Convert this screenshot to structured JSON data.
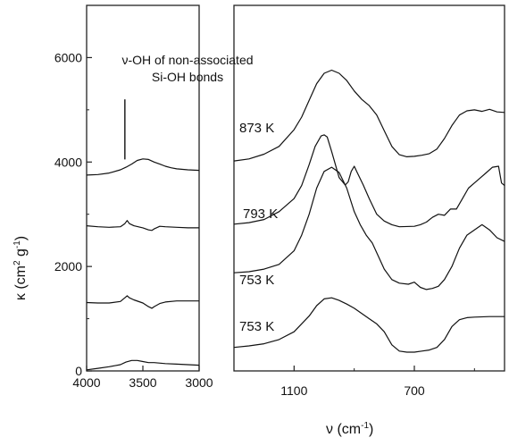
{
  "chart_data": [
    {
      "panel": "left",
      "type": "line",
      "xlim": [
        4000,
        3000
      ],
      "ylim": [
        0,
        7000
      ],
      "xticks": [
        "4000",
        "3500",
        "3000"
      ],
      "yticks": [
        "0",
        "2000",
        "4000",
        "6000"
      ],
      "ylabel": "κ (cm² g⁻¹)",
      "annotation": {
        "line1": "ν-OH of non-associated",
        "line2": "Si-OH bonds",
        "marker_x": 3660,
        "marker_y_range": [
          4050,
          5200
        ]
      },
      "series": [
        {
          "x": [
            4000,
            3900,
            3800,
            3700,
            3650,
            3600,
            3550,
            3500,
            3450,
            3400,
            3350,
            3300,
            3250,
            3200,
            3100,
            3000
          ],
          "y": [
            3750,
            3760,
            3790,
            3850,
            3900,
            3960,
            4030,
            4060,
            4050,
            4000,
            3960,
            3920,
            3890,
            3870,
            3850,
            3840
          ]
        },
        {
          "x": [
            4000,
            3900,
            3800,
            3700,
            3660,
            3640,
            3620,
            3580,
            3500,
            3450,
            3420,
            3400,
            3350,
            3300,
            3200,
            3100,
            3000
          ],
          "y": [
            2780,
            2760,
            2750,
            2760,
            2820,
            2880,
            2820,
            2780,
            2740,
            2700,
            2690,
            2720,
            2770,
            2760,
            2750,
            2740,
            2740
          ]
        },
        {
          "x": [
            4000,
            3900,
            3800,
            3700,
            3660,
            3640,
            3620,
            3580,
            3500,
            3450,
            3420,
            3400,
            3350,
            3300,
            3200,
            3100,
            3000
          ],
          "y": [
            1310,
            1300,
            1300,
            1330,
            1400,
            1440,
            1400,
            1360,
            1300,
            1230,
            1200,
            1230,
            1290,
            1320,
            1340,
            1340,
            1340
          ]
        },
        {
          "x": [
            4000,
            3900,
            3800,
            3700,
            3650,
            3600,
            3550,
            3500,
            3450,
            3400,
            3300,
            3200,
            3100,
            3000
          ],
          "y": [
            20,
            50,
            80,
            120,
            170,
            200,
            200,
            180,
            160,
            160,
            140,
            130,
            120,
            110
          ]
        }
      ]
    },
    {
      "panel": "right",
      "type": "line",
      "xlim": [
        1300,
        400
      ],
      "xticks": [
        "1100",
        "700"
      ],
      "xlabel": "ν (cm⁻¹)",
      "series": [
        {
          "name": "873 K",
          "x": [
            1300,
            1250,
            1200,
            1150,
            1100,
            1075,
            1050,
            1025,
            1000,
            975,
            950,
            925,
            900,
            875,
            850,
            825,
            800,
            775,
            750,
            725,
            700,
            675,
            650,
            625,
            600,
            575,
            550,
            525,
            500,
            475,
            450,
            425,
            400
          ],
          "y": [
            4020,
            4060,
            4150,
            4300,
            4620,
            4860,
            5180,
            5500,
            5700,
            5760,
            5700,
            5560,
            5360,
            5200,
            5080,
            4900,
            4600,
            4300,
            4140,
            4100,
            4110,
            4130,
            4160,
            4250,
            4450,
            4700,
            4900,
            4980,
            5000,
            4970,
            5010,
            4960,
            4950
          ]
        },
        {
          "name": "793 K",
          "x": [
            1300,
            1250,
            1200,
            1150,
            1100,
            1075,
            1050,
            1030,
            1010,
            1000,
            990,
            975,
            950,
            930,
            920,
            910,
            900,
            890,
            870,
            850,
            825,
            800,
            775,
            750,
            700,
            680,
            660,
            640,
            620,
            600,
            580,
            560,
            540,
            520,
            500,
            480,
            460,
            440,
            420,
            410,
            400
          ],
          "y": [
            2810,
            2840,
            2900,
            3050,
            3300,
            3550,
            3950,
            4300,
            4500,
            4520,
            4480,
            4200,
            3700,
            3560,
            3620,
            3820,
            3920,
            3800,
            3560,
            3300,
            3000,
            2870,
            2800,
            2760,
            2770,
            2800,
            2850,
            2940,
            3000,
            2980,
            3100,
            3100,
            3300,
            3500,
            3600,
            3700,
            3800,
            3900,
            3920,
            3600,
            3550
          ]
        },
        {
          "name": "753 K",
          "x": [
            1300,
            1250,
            1200,
            1150,
            1100,
            1075,
            1050,
            1025,
            1000,
            975,
            950,
            925,
            900,
            880,
            860,
            840,
            820,
            800,
            775,
            750,
            720,
            700,
            680,
            660,
            640,
            620,
            600,
            575,
            550,
            525,
            500,
            475,
            450,
            425,
            400
          ],
          "y": [
            1880,
            1900,
            1950,
            2040,
            2300,
            2600,
            3000,
            3500,
            3820,
            3900,
            3800,
            3500,
            3050,
            2800,
            2600,
            2450,
            2200,
            1950,
            1750,
            1680,
            1660,
            1700,
            1600,
            1560,
            1580,
            1620,
            1750,
            2000,
            2350,
            2600,
            2700,
            2800,
            2700,
            2550,
            2480
          ]
        },
        {
          "name": "753 K",
          "x": [
            1300,
            1250,
            1200,
            1150,
            1100,
            1050,
            1025,
            1000,
            975,
            950,
            925,
            900,
            875,
            850,
            825,
            800,
            775,
            750,
            725,
            700,
            675,
            650,
            625,
            600,
            575,
            550,
            525,
            500,
            450,
            400
          ],
          "y": [
            450,
            480,
            520,
            600,
            750,
            1050,
            1250,
            1380,
            1400,
            1350,
            1280,
            1200,
            1100,
            1000,
            900,
            750,
            500,
            380,
            360,
            360,
            380,
            400,
            450,
            600,
            850,
            980,
            1020,
            1030,
            1040,
            1040
          ]
        }
      ]
    }
  ]
}
